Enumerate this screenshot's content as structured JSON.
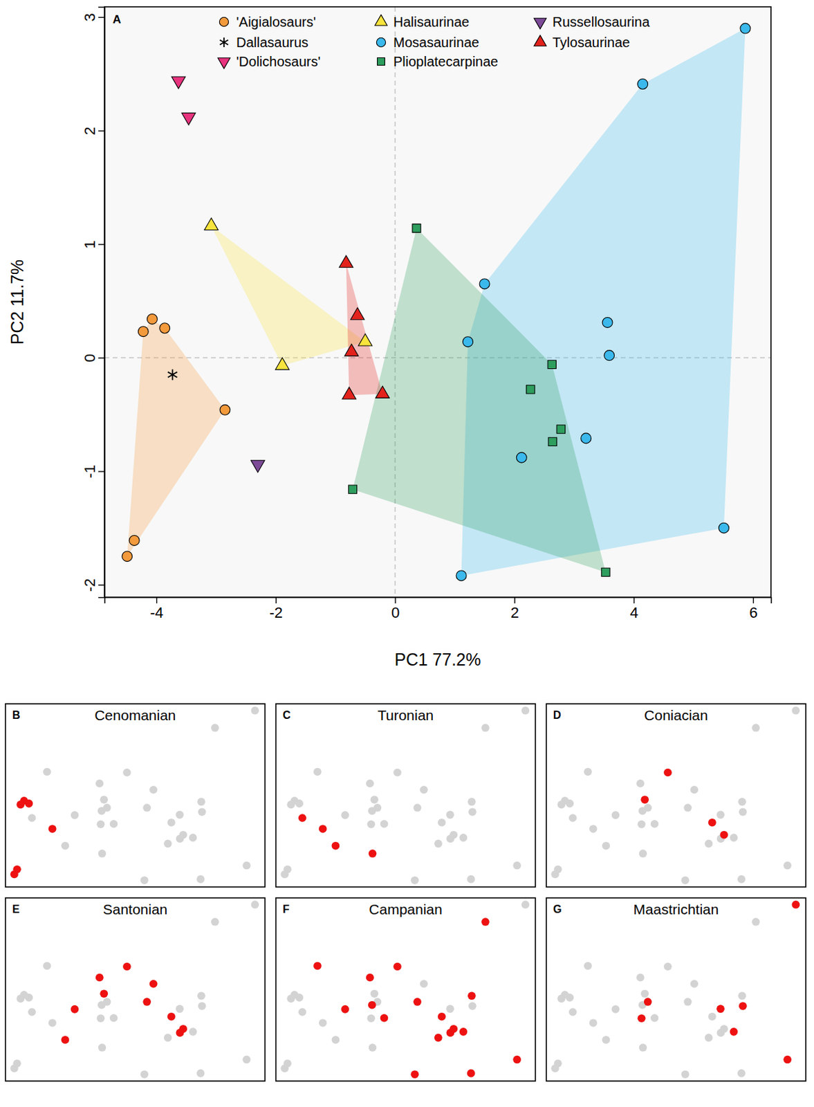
{
  "chart_data": [
    {
      "type": "scatter",
      "label": "A",
      "x_label": "PC1 77.2%",
      "y_label": "PC2 11.7%",
      "xlim": [
        -4.87,
        6.3
      ],
      "ylim": [
        -2.11,
        3.09
      ],
      "xticks": [
        -4,
        -2,
        0,
        2,
        4,
        6
      ],
      "yticks": [
        -2,
        -1,
        0,
        1,
        2,
        3
      ],
      "reference_lines": {
        "x": 0,
        "y": 0
      },
      "legend": "top",
      "series": [
        {
          "name": "'Aigialosaurs'",
          "color": "#f39a3c",
          "marker": "circle",
          "x": [
            -4.07,
            -4.22,
            -3.86,
            -2.85,
            -4.37,
            -4.49
          ],
          "y": [
            0.34,
            0.23,
            0.26,
            -0.46,
            -1.61,
            -1.75
          ]
        },
        {
          "name": "Dallasaurus",
          "color": "#000000",
          "marker": "asterisk",
          "x": [
            -3.73
          ],
          "y": [
            -0.15
          ]
        },
        {
          "name": "'Dolichosaurs'",
          "color": "#e8337e",
          "marker": "triangle-down",
          "x": [
            -3.63,
            -3.46
          ],
          "y": [
            2.44,
            2.12
          ]
        },
        {
          "name": "Halisaurinae",
          "color": "#f7e43c",
          "marker": "triangle",
          "x": [
            -3.08,
            -1.89,
            -0.5
          ],
          "y": [
            1.16,
            -0.07,
            0.14
          ]
        },
        {
          "name": "Mosasaurinae",
          "color": "#3bb9ec",
          "marker": "circle",
          "x": [
            5.87,
            4.15,
            1.5,
            1.22,
            3.56,
            3.59,
            3.2,
            2.12,
            1.11,
            5.51
          ],
          "y": [
            2.9,
            2.41,
            0.65,
            0.14,
            0.31,
            0.02,
            -0.71,
            -0.88,
            -1.92,
            -1.5
          ]
        },
        {
          "name": "Plioplatecarpinae",
          "color": "#2e9e5e",
          "marker": "square",
          "x": [
            0.36,
            2.63,
            2.27,
            2.78,
            2.64,
            -0.71,
            3.53
          ],
          "y": [
            1.14,
            -0.06,
            -0.28,
            -0.63,
            -0.74,
            -1.16,
            -1.89
          ]
        },
        {
          "name": "Russellosaurina",
          "color": "#7d4a98",
          "marker": "triangle-down",
          "x": [
            -2.3
          ],
          "y": [
            -0.94
          ]
        },
        {
          "name": "Tylosaurinae",
          "color": "#e3221c",
          "marker": "triangle",
          "x": [
            -0.82,
            -0.63,
            -0.73,
            -0.77,
            -0.21
          ],
          "y": [
            0.83,
            0.37,
            0.05,
            -0.33,
            -0.32
          ]
        }
      ]
    },
    {
      "type": "scatter",
      "label": "B",
      "title": "Cenomanian",
      "xlim": [
        -4.87,
        6.3
      ],
      "ylim": [
        -2.11,
        3.09
      ],
      "tick_labels": false,
      "series": [
        {
          "color": "#d3d3d3",
          "x": [
            -4.07,
            -4.22,
            -3.86,
            -2.85,
            -4.37,
            -4.49,
            -3.73,
            -3.08,
            -1.89,
            -0.5,
            5.87,
            4.15,
            1.5,
            1.22,
            3.56,
            3.59,
            3.2,
            2.12,
            1.11,
            5.51,
            0.36,
            2.63,
            2.27,
            2.78,
            2.64,
            -0.71,
            3.53,
            -2.3,
            -0.82,
            -0.63,
            -0.73,
            -0.77,
            -0.21
          ],
          "y": [
            0.34,
            0.23,
            0.26,
            -0.46,
            -1.61,
            -1.75,
            -0.15,
            1.16,
            -0.07,
            0.14,
            2.9,
            2.41,
            0.65,
            0.14,
            0.31,
            0.02,
            -0.71,
            -0.88,
            -1.92,
            -1.5,
            1.14,
            -0.06,
            -0.28,
            -0.63,
            -0.74,
            -1.16,
            -1.89,
            -0.94,
            0.83,
            0.37,
            0.05,
            -0.33,
            -0.32
          ]
        },
        {
          "color": "#ee1111",
          "x": [
            -4.07,
            -4.22,
            -3.86,
            -2.85,
            -4.37,
            -4.49
          ],
          "y": [
            0.34,
            0.23,
            0.26,
            -0.46,
            -1.61,
            -1.75
          ]
        }
      ]
    },
    {
      "type": "scatter",
      "label": "C",
      "title": "Turonian",
      "xlim": [
        -4.87,
        6.3
      ],
      "ylim": [
        -2.11,
        3.09
      ],
      "tick_labels": false,
      "series": [
        {
          "color": "#d3d3d3",
          "x": [
            -4.07,
            -4.22,
            -3.86,
            -2.85,
            -4.37,
            -4.49,
            -3.73,
            -3.08,
            -1.89,
            -0.5,
            5.87,
            4.15,
            1.5,
            1.22,
            3.56,
            3.59,
            3.2,
            2.12,
            1.11,
            5.51,
            0.36,
            2.63,
            2.27,
            2.78,
            2.64,
            -0.71,
            3.53,
            -2.3,
            -0.82,
            -0.63,
            -0.73,
            -0.77,
            -0.21
          ],
          "y": [
            0.34,
            0.23,
            0.26,
            -0.46,
            -1.61,
            -1.75,
            -0.15,
            1.16,
            -0.07,
            0.14,
            2.9,
            2.41,
            0.65,
            0.14,
            0.31,
            0.02,
            -0.71,
            -0.88,
            -1.92,
            -1.5,
            1.14,
            -0.06,
            -0.28,
            -0.63,
            -0.74,
            -1.16,
            -1.89,
            -0.94,
            0.83,
            0.37,
            0.05,
            -0.33,
            -0.32
          ]
        },
        {
          "color": "#ee1111",
          "x": [
            -3.73,
            -2.85,
            -2.3,
            -0.71
          ],
          "y": [
            -0.15,
            -0.46,
            -0.94,
            -1.16
          ]
        }
      ]
    },
    {
      "type": "scatter",
      "label": "D",
      "title": "Coniacian",
      "xlim": [
        -4.87,
        6.3
      ],
      "ylim": [
        -2.11,
        3.09
      ],
      "tick_labels": false,
      "series": [
        {
          "color": "#d3d3d3",
          "x": [
            -4.07,
            -4.22,
            -3.86,
            -2.85,
            -4.37,
            -4.49,
            -3.73,
            -3.08,
            -1.89,
            -0.5,
            5.87,
            4.15,
            1.5,
            1.22,
            3.56,
            3.59,
            3.2,
            2.12,
            1.11,
            5.51,
            0.36,
            2.63,
            2.27,
            2.78,
            2.64,
            -0.71,
            3.53,
            -2.3,
            -0.82,
            -0.63,
            -0.73,
            -0.77,
            -0.21
          ],
          "y": [
            0.34,
            0.23,
            0.26,
            -0.46,
            -1.61,
            -1.75,
            -0.15,
            1.16,
            -0.07,
            0.14,
            2.9,
            2.41,
            0.65,
            0.14,
            0.31,
            0.02,
            -0.71,
            -0.88,
            -1.92,
            -1.5,
            1.14,
            -0.06,
            -0.28,
            -0.63,
            -0.74,
            -1.16,
            -1.89,
            -0.94,
            0.83,
            0.37,
            0.05,
            -0.33,
            -0.32
          ]
        },
        {
          "color": "#ee1111",
          "x": [
            0.36,
            -0.63,
            2.27,
            2.78
          ],
          "y": [
            1.14,
            0.37,
            -0.28,
            -0.63
          ]
        }
      ]
    },
    {
      "type": "scatter",
      "label": "E",
      "title": "Santonian",
      "xlim": [
        -4.87,
        6.3
      ],
      "ylim": [
        -2.11,
        3.09
      ],
      "tick_labels": false,
      "series": [
        {
          "color": "#d3d3d3",
          "x": [
            -4.07,
            -4.22,
            -3.86,
            -2.85,
            -4.37,
            -4.49,
            -3.73,
            -3.08,
            -1.89,
            -0.5,
            5.87,
            4.15,
            1.5,
            1.22,
            3.56,
            3.59,
            3.2,
            2.12,
            1.11,
            5.51,
            0.36,
            2.63,
            2.27,
            2.78,
            2.64,
            -0.71,
            3.53,
            -2.3,
            -0.82,
            -0.63,
            -0.73,
            -0.77,
            -0.21
          ],
          "y": [
            0.34,
            0.23,
            0.26,
            -0.46,
            -1.61,
            -1.75,
            -0.15,
            1.16,
            -0.07,
            0.14,
            2.9,
            2.41,
            0.65,
            0.14,
            0.31,
            0.02,
            -0.71,
            -0.88,
            -1.92,
            -1.5,
            1.14,
            -0.06,
            -0.28,
            -0.63,
            -0.74,
            -1.16,
            -1.89,
            -0.94,
            0.83,
            0.37,
            0.05,
            -0.33,
            -0.32
          ]
        },
        {
          "color": "#ee1111",
          "x": [
            -0.82,
            -0.63,
            0.36,
            1.5,
            1.22,
            2.27,
            2.78,
            2.64,
            -1.89,
            -2.3
          ],
          "y": [
            0.83,
            0.37,
            1.14,
            0.65,
            0.14,
            -0.28,
            -0.63,
            -0.74,
            -0.07,
            -0.94
          ]
        }
      ]
    },
    {
      "type": "scatter",
      "label": "F",
      "title": "Campanian",
      "xlim": [
        -4.87,
        6.3
      ],
      "ylim": [
        -2.11,
        3.09
      ],
      "tick_labels": false,
      "series": [
        {
          "color": "#d3d3d3",
          "x": [
            -4.07,
            -4.22,
            -3.86,
            -2.85,
            -4.37,
            -4.49,
            -3.73,
            -3.08,
            -1.89,
            -0.5,
            5.87,
            4.15,
            1.5,
            1.22,
            3.56,
            3.59,
            3.2,
            2.12,
            1.11,
            5.51,
            0.36,
            2.63,
            2.27,
            2.78,
            2.64,
            -0.71,
            3.53,
            -2.3,
            -0.82,
            -0.63,
            -0.73,
            -0.77,
            -0.21
          ],
          "y": [
            0.34,
            0.23,
            0.26,
            -0.46,
            -1.61,
            -1.75,
            -0.15,
            1.16,
            -0.07,
            0.14,
            2.9,
            2.41,
            0.65,
            0.14,
            0.31,
            0.02,
            -0.71,
            -0.88,
            -1.92,
            -1.5,
            1.14,
            -0.06,
            -0.28,
            -0.63,
            -0.74,
            -1.16,
            -1.89,
            -0.94,
            0.83,
            0.37,
            0.05,
            -0.33,
            -0.32
          ]
        },
        {
          "color": "#ee1111",
          "x": [
            -3.08,
            -1.89,
            -0.82,
            -0.73,
            -0.21,
            0.36,
            1.22,
            2.27,
            2.12,
            2.64,
            2.78,
            3.2,
            3.56,
            4.15,
            5.51,
            1.11,
            3.53
          ],
          "y": [
            1.16,
            -0.07,
            0.83,
            0.05,
            -0.32,
            1.14,
            0.14,
            -0.28,
            -0.88,
            -0.74,
            -0.63,
            -0.71,
            0.31,
            2.41,
            -1.5,
            -1.92,
            -1.89
          ]
        }
      ]
    },
    {
      "type": "scatter",
      "label": "G",
      "title": "Maastrichtian",
      "xlim": [
        -4.87,
        6.3
      ],
      "ylim": [
        -2.11,
        3.09
      ],
      "tick_labels": false,
      "series": [
        {
          "color": "#d3d3d3",
          "x": [
            -4.07,
            -4.22,
            -3.86,
            -2.85,
            -4.37,
            -4.49,
            -3.73,
            -3.08,
            -1.89,
            -0.5,
            5.87,
            4.15,
            1.5,
            1.22,
            3.56,
            3.59,
            3.2,
            2.12,
            1.11,
            5.51,
            0.36,
            2.63,
            2.27,
            2.78,
            2.64,
            -0.71,
            3.53,
            -2.3,
            -0.82,
            -0.63,
            -0.73,
            -0.77,
            -0.21
          ],
          "y": [
            0.34,
            0.23,
            0.26,
            -0.46,
            -1.61,
            -1.75,
            -0.15,
            1.16,
            -0.07,
            0.14,
            2.9,
            2.41,
            0.65,
            0.14,
            0.31,
            0.02,
            -0.71,
            -0.88,
            -1.92,
            -1.5,
            1.14,
            -0.06,
            -0.28,
            -0.63,
            -0.74,
            -1.16,
            -1.89,
            -0.94,
            0.83,
            0.37,
            0.05,
            -0.33,
            -0.32
          ]
        },
        {
          "color": "#ee1111",
          "x": [
            5.87,
            -0.5,
            -0.77,
            2.63,
            3.59,
            3.2,
            5.51
          ],
          "y": [
            2.9,
            0.14,
            -0.33,
            -0.06,
            0.02,
            -0.71,
            -1.5
          ]
        }
      ]
    }
  ]
}
